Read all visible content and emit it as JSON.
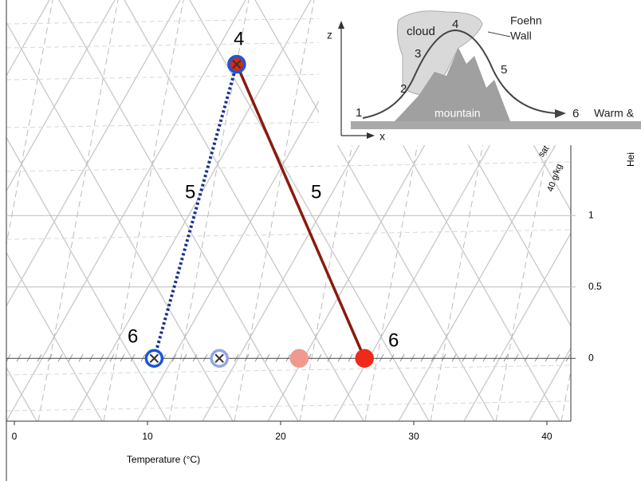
{
  "chart_data": {
    "type": "line",
    "x_label": "Temperature (°C)",
    "y_label": "Hei",
    "xlim": [
      -0.6,
      41.8
    ],
    "xticks": [
      0,
      10,
      20,
      30,
      40
    ],
    "ylim": [
      -0.44,
      2.51
    ],
    "yticks": [
      0,
      0.5,
      1
    ],
    "lines": [
      {
        "color": "#8b1a0f",
        "style": "solid",
        "x": [
          16.7,
          26.3
        ],
        "y": [
          2.06,
          0
        ]
      },
      {
        "color": "#1b2f8f",
        "style": "dotted",
        "x": [
          16.7,
          10.5
        ],
        "y": [
          2.06,
          0
        ]
      }
    ],
    "points": [
      {
        "x": 16.7,
        "y": 2.06,
        "color": "#d42a1a",
        "ring": "#1a56d6",
        "cross": true
      },
      {
        "x": 10.5,
        "y": 0,
        "color": "#ffffff",
        "ring": "#1a56d6",
        "cross": true
      },
      {
        "x": 15.4,
        "y": 0,
        "color": "#ffffff",
        "ring": "#8ea6e6",
        "cross": true
      },
      {
        "x": 21.4,
        "y": 0,
        "color": "#f1998f",
        "ring": "#f1998f",
        "cross": false
      },
      {
        "x": 26.3,
        "y": 0,
        "color": "#ee2a1a",
        "ring": "#ee2a1a",
        "cross": false
      }
    ],
    "annotations": [
      "4",
      "5",
      "5",
      "6",
      "6",
      "40 g/kg",
      "sat"
    ],
    "inset": {
      "labels": [
        "z",
        "x",
        "cloud",
        "4",
        "Foehn",
        "Wall",
        "3",
        "5",
        "2",
        "1",
        "mountain",
        "6",
        "Warm &"
      ]
    }
  }
}
